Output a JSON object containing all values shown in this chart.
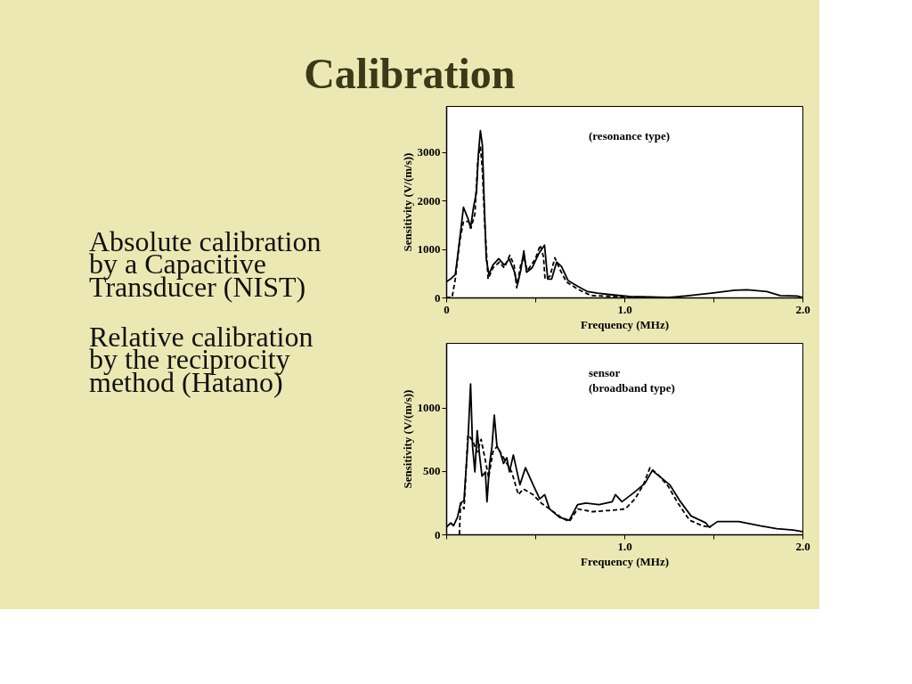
{
  "chart_data": [
    {
      "type": "other",
      "title": "Calibration",
      "annotations": [
        "Absolute calibration by a Capacitive Transducer (NIST)",
        "Relative calibration by the reciprocity method (Hatano)"
      ]
    },
    {
      "type": "line",
      "xlabel": "Frequency (MHz)",
      "ylabel": "Sensitivity (V/(m/s))",
      "annotations": [
        "(resonance type)"
      ],
      "xlim": [
        0,
        2.0
      ],
      "ylim": [
        0,
        3950
      ],
      "xticks": [
        0,
        {
          "value": 0.5,
          "label": null
        },
        {
          "value": 1,
          "label": "1.0"
        },
        {
          "value": 1.5,
          "label": null
        },
        {
          "value": 2,
          "label": "2.0"
        }
      ],
      "yticks": [
        0,
        1000,
        2000,
        3000
      ],
      "grid": false,
      "legend": false,
      "marker": "none",
      "series": [
        {
          "color": "#000000",
          "line_style": "solid",
          "x": [
            0,
            0.024,
            0.051,
            0.07,
            0.097,
            0.125,
            0.137,
            0.152,
            0.17,
            0.181,
            0.192,
            0.203,
            0.213,
            0.225,
            0.24,
            0.262,
            0.295,
            0.326,
            0.354,
            0.381,
            0.4,
            0.418,
            0.436,
            0.451,
            0.482,
            0.519,
            0.552,
            0.57,
            0.592,
            0.62,
            0.647,
            0.684,
            0.739,
            0.794,
            0.849,
            0.92,
            1.03,
            1.25,
            1.34,
            1.49,
            1.62,
            1.69,
            1.8,
            1.875,
            1.97,
            2.0
          ],
          "values": [
            320,
            380,
            470,
            1020,
            1860,
            1600,
            1430,
            1830,
            2180,
            2970,
            3440,
            3150,
            2010,
            790,
            470,
            670,
            800,
            670,
            790,
            550,
            260,
            550,
            960,
            520,
            610,
            900,
            1080,
            380,
            380,
            730,
            640,
            350,
            230,
            120,
            90,
            60,
            20,
            0,
            30,
            90,
            150,
            160,
            120,
            40,
            30,
            0
          ]
        },
        {
          "color": "#000000",
          "line_style": "dashed",
          "x": [
            0,
            0.033,
            0.051,
            0.075,
            0.097,
            0.125,
            0.139,
            0.161,
            0.178,
            0.192,
            0.203,
            0.216,
            0.235,
            0.262,
            0.299,
            0.326,
            0.357,
            0.381,
            0.396,
            0.418,
            0.436,
            0.455,
            0.5,
            0.528,
            0.546,
            0.555,
            0.583,
            0.61,
            0.638,
            0.675,
            0.739,
            0.812,
            0.885,
            0.995,
            1.25
          ],
          "values": [
            0,
            0,
            380,
            1140,
            1570,
            1570,
            1430,
            1720,
            2850,
            3120,
            2620,
            1540,
            380,
            610,
            730,
            610,
            870,
            670,
            200,
            670,
            840,
            550,
            790,
            1080,
            840,
            380,
            440,
            820,
            580,
            320,
            170,
            40,
            30,
            10,
            0
          ]
        }
      ]
    },
    {
      "type": "line",
      "xlabel": "Frequency (MHz)",
      "ylabel": "Sensitivity (V/(m/s))",
      "annotations": [
        "sensor",
        "(broadband type)"
      ],
      "xlim": [
        0,
        2.0
      ],
      "ylim": [
        0,
        1510
      ],
      "xticks": [
        {
          "value": 0,
          "label": null
        },
        {
          "value": 0.5,
          "label": null
        },
        {
          "value": 1,
          "label": "1.0"
        },
        {
          "value": 1.5,
          "label": null
        },
        {
          "value": 2,
          "label": "2.0"
        }
      ],
      "yticks": [
        0,
        500,
        1000
      ],
      "grid": false,
      "legend": false,
      "marker": "none",
      "series": [
        {
          "color": "#000000",
          "line_style": "solid",
          "x": [
            0,
            0.026,
            0.041,
            0.063,
            0.081,
            0.1,
            0.122,
            0.137,
            0.148,
            0.161,
            0.174,
            0.187,
            0.201,
            0.22,
            0.229,
            0.244,
            0.257,
            0.27,
            0.285,
            0.303,
            0.322,
            0.34,
            0.355,
            0.377,
            0.414,
            0.445,
            0.488,
            0.525,
            0.553,
            0.58,
            0.636,
            0.691,
            0.738,
            0.784,
            0.858,
            0.932,
            0.95,
            0.987,
            1.06,
            1.116,
            1.157,
            1.207,
            1.255,
            1.31,
            1.375,
            1.458,
            1.477,
            1.523,
            1.643,
            1.763,
            1.856,
            1.948,
            2.0
          ],
          "values": [
            56,
            90,
            67,
            134,
            246,
            268,
            738,
            1186,
            694,
            492,
            817,
            626,
            459,
            492,
            257,
            559,
            694,
            940,
            694,
            649,
            559,
            604,
            492,
            626,
            391,
            526,
            391,
            280,
            313,
            201,
            134,
            112,
            235,
            246,
            235,
            257,
            313,
            257,
            336,
            403,
            503,
            447,
            391,
            268,
            145,
            90,
            56,
            101,
            101,
            67,
            45,
            34,
            22
          ]
        },
        {
          "color": "#000000",
          "line_style": "dashed",
          "x": [
            0.074,
            0.081,
            0.1,
            0.122,
            0.137,
            0.155,
            0.174,
            0.196,
            0.22,
            0.238,
            0.262,
            0.285,
            0.322,
            0.368,
            0.405,
            0.433,
            0.488,
            0.534,
            0.58,
            0.645,
            0.691,
            0.738,
            0.821,
            0.932,
            1.006,
            1.06,
            1.107,
            1.144,
            1.19,
            1.246,
            1.301,
            1.366,
            1.44,
            1.486
          ],
          "values": [
            0,
            246,
            201,
            783,
            761,
            716,
            649,
            749,
            582,
            447,
            649,
            694,
            604,
            492,
            313,
            358,
            313,
            246,
            201,
            134,
            101,
            201,
            179,
            190,
            201,
            280,
            391,
            526,
            470,
            380,
            246,
            112,
            67,
            56
          ]
        }
      ]
    }
  ]
}
